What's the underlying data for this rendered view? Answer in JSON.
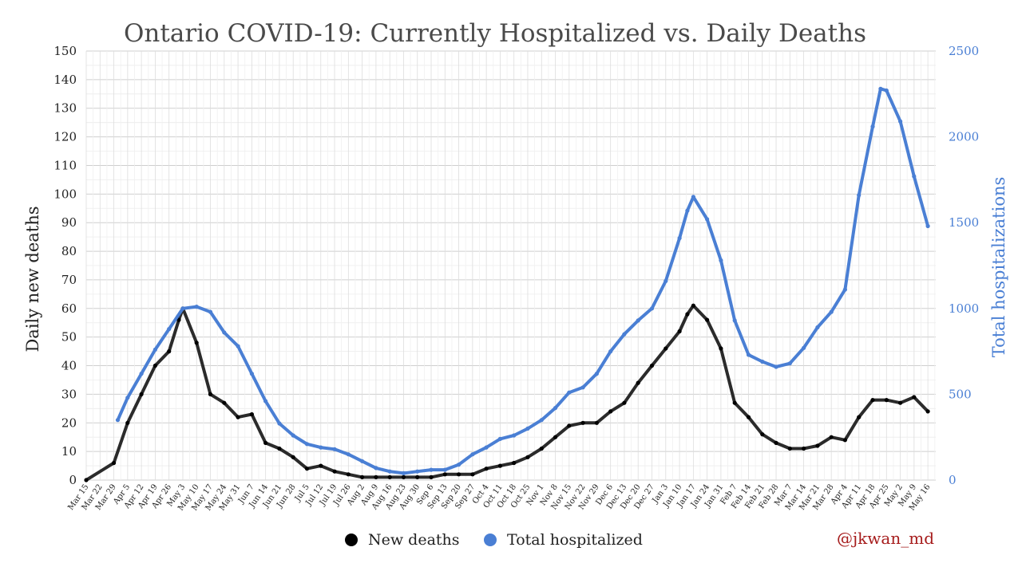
{
  "chart_data": {
    "type": "scatter",
    "title": "Ontario COVID-19: Currently Hospitalized vs. Daily Deaths",
    "ylabel": "Daily new deaths",
    "ylabel_right": "Total hospitalizations",
    "ylim": [
      0,
      150
    ],
    "ylim_right": [
      0,
      2500
    ],
    "yticks": [
      "0",
      "10",
      "20",
      "30",
      "40",
      "50",
      "60",
      "70",
      "80",
      "90",
      "100",
      "110",
      "120",
      "130",
      "140",
      "150"
    ],
    "yticks_right": [
      "0",
      "500",
      "1000",
      "1500",
      "2000",
      "2500"
    ],
    "x_start": "2020-03-15",
    "x_end": "2021-05-20",
    "xticks": [
      "Mar 15",
      "Mar 22",
      "Mar 29",
      "Apr 5",
      "Apr 12",
      "Apr 19",
      "Apr 26",
      "May 3",
      "May 10",
      "May 17",
      "May 24",
      "May 31",
      "Jun 7",
      "Jun 14",
      "Jun 21",
      "Jun 28",
      "Jul 5",
      "Jul 12",
      "Jul 19",
      "Jul 26",
      "Aug 2",
      "Aug 9",
      "Aug 16",
      "Aug 23",
      "Aug 30",
      "Sep 6",
      "Sep 13",
      "Sep 20",
      "Sep 27",
      "Oct 4",
      "Oct 11",
      "Oct 18",
      "Oct 25",
      "Nov 1",
      "Nov 8",
      "Nov 15",
      "Nov 22",
      "Nov 29",
      "Dec 6",
      "Dec 13",
      "Dec 20",
      "Dec 27",
      "Jan 3",
      "Jan 10",
      "Jan 17",
      "Jan 24",
      "Jan 31",
      "Feb 7",
      "Feb 14",
      "Feb 21",
      "Feb 28",
      "Mar 7",
      "Mar 14",
      "Mar 21",
      "Mar 28",
      "Apr 4",
      "Apr 11",
      "Apr 18",
      "Apr 25",
      "May 2",
      "May 9",
      "May 16"
    ],
    "grid": true,
    "legend_position": "bottom",
    "series": [
      {
        "name": "New deaths",
        "axis": "left",
        "color": "#000000",
        "x": [
          "2020-03-15",
          "2020-03-29",
          "2020-04-05",
          "2020-04-12",
          "2020-04-19",
          "2020-04-26",
          "2020-05-01",
          "2020-05-03",
          "2020-05-10",
          "2020-05-17",
          "2020-05-24",
          "2020-05-31",
          "2020-06-07",
          "2020-06-14",
          "2020-06-21",
          "2020-06-28",
          "2020-07-05",
          "2020-07-12",
          "2020-07-19",
          "2020-07-26",
          "2020-08-02",
          "2020-08-09",
          "2020-08-16",
          "2020-08-23",
          "2020-08-30",
          "2020-09-06",
          "2020-09-13",
          "2020-09-20",
          "2020-09-27",
          "2020-10-04",
          "2020-10-11",
          "2020-10-18",
          "2020-10-25",
          "2020-11-01",
          "2020-11-08",
          "2020-11-15",
          "2020-11-22",
          "2020-11-29",
          "2020-12-06",
          "2020-12-13",
          "2020-12-20",
          "2020-12-27",
          "2021-01-03",
          "2021-01-10",
          "2021-01-14",
          "2021-01-17",
          "2021-01-24",
          "2021-01-31",
          "2021-02-07",
          "2021-02-14",
          "2021-02-21",
          "2021-02-28",
          "2021-03-07",
          "2021-03-14",
          "2021-03-21",
          "2021-03-28",
          "2021-04-04",
          "2021-04-11",
          "2021-04-18",
          "2021-04-25",
          "2021-05-02",
          "2021-05-09",
          "2021-05-16"
        ],
        "y": [
          0,
          6,
          20,
          30,
          40,
          45,
          56,
          60,
          48,
          30,
          27,
          22,
          23,
          13,
          11,
          8,
          4,
          5,
          3,
          2,
          1,
          1,
          1,
          1,
          1,
          1,
          2,
          2,
          2,
          4,
          5,
          6,
          8,
          11,
          15,
          19,
          20,
          20,
          24,
          27,
          34,
          40,
          46,
          52,
          58,
          61,
          56,
          46,
          27,
          22,
          16,
          13,
          11,
          11,
          12,
          15,
          14,
          22,
          28,
          28,
          27,
          29,
          24
        ]
      },
      {
        "name": "Total hospitalized",
        "axis": "right",
        "color": "#4a7fd4",
        "x": [
          "2020-03-31",
          "2020-04-05",
          "2020-04-12",
          "2020-04-19",
          "2020-04-26",
          "2020-05-03",
          "2020-05-10",
          "2020-05-17",
          "2020-05-24",
          "2020-05-31",
          "2020-06-07",
          "2020-06-14",
          "2020-06-21",
          "2020-06-28",
          "2020-07-05",
          "2020-07-12",
          "2020-07-19",
          "2020-07-26",
          "2020-08-02",
          "2020-08-09",
          "2020-08-16",
          "2020-08-23",
          "2020-08-30",
          "2020-09-06",
          "2020-09-13",
          "2020-09-20",
          "2020-09-27",
          "2020-10-04",
          "2020-10-11",
          "2020-10-18",
          "2020-10-25",
          "2020-11-01",
          "2020-11-08",
          "2020-11-15",
          "2020-11-22",
          "2020-11-29",
          "2020-12-06",
          "2020-12-13",
          "2020-12-20",
          "2020-12-27",
          "2021-01-03",
          "2021-01-10",
          "2021-01-14",
          "2021-01-17",
          "2021-01-24",
          "2021-01-31",
          "2021-02-07",
          "2021-02-14",
          "2021-02-21",
          "2021-02-28",
          "2021-03-07",
          "2021-03-14",
          "2021-03-21",
          "2021-03-28",
          "2021-04-04",
          "2021-04-11",
          "2021-04-18",
          "2021-04-22",
          "2021-04-25",
          "2021-05-02",
          "2021-05-09",
          "2021-05-16"
        ],
        "y": [
          350,
          480,
          620,
          760,
          880,
          1000,
          1010,
          980,
          860,
          780,
          620,
          460,
          330,
          260,
          210,
          190,
          180,
          150,
          110,
          70,
          50,
          40,
          50,
          60,
          60,
          90,
          150,
          190,
          240,
          260,
          300,
          350,
          420,
          510,
          540,
          620,
          750,
          850,
          930,
          1000,
          1160,
          1410,
          1570,
          1650,
          1520,
          1280,
          930,
          730,
          690,
          660,
          680,
          770,
          890,
          980,
          1110,
          1660,
          2060,
          2280,
          2270,
          2090,
          1770,
          1480
        ]
      }
    ]
  },
  "legend": {
    "items": [
      {
        "label": "New deaths",
        "color": "#000000"
      },
      {
        "label": "Total hospitalized",
        "color": "#4a7fd4"
      }
    ]
  },
  "credit": "@jkwan_md"
}
